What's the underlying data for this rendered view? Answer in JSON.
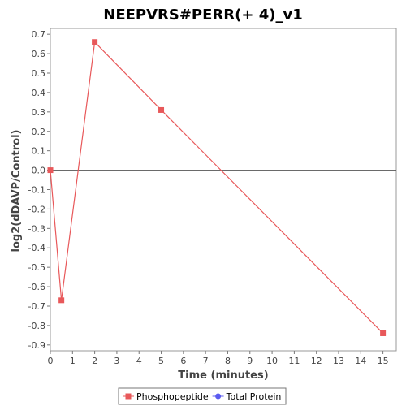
{
  "chart_data": {
    "type": "line",
    "title": "NEEPVRS#PERR(+ 4)_v1",
    "xlabel": "Time (minutes)",
    "ylabel": "log2(dDAVP/Control)",
    "xlim": [
      0,
      15.6
    ],
    "ylim": [
      -0.93,
      0.73
    ],
    "x_ticks": [
      0,
      1,
      2,
      3,
      4,
      5,
      6,
      7,
      8,
      9,
      10,
      11,
      12,
      13,
      14,
      15
    ],
    "y_ticks": [
      0.7,
      0.6,
      0.5,
      0.4,
      0.3,
      0.2,
      0.1,
      0.0,
      -0.1,
      -0.2,
      -0.3,
      -0.4,
      -0.5,
      -0.6,
      -0.7,
      -0.8,
      -0.9
    ],
    "y_tick_labels": [
      "0.7",
      "0.6",
      "0.5",
      "0.4",
      "0.3",
      "0.2",
      "0.1",
      "0.0",
      "-0.1",
      "-0.2",
      "-0.3",
      "-0.4",
      "-0.5",
      "-0.6",
      "-0.7",
      "-0.8",
      "-0.9"
    ],
    "zero_line": true,
    "grid": false,
    "legend_position": "bottom",
    "series": [
      {
        "name": "Phosphopeptide",
        "color": "#e8585a",
        "marker": "square",
        "points": [
          {
            "x": 0,
            "y": 0.0
          },
          {
            "x": 0.5,
            "y": -0.67
          },
          {
            "x": 2,
            "y": 0.66
          },
          {
            "x": 5,
            "y": 0.31
          },
          {
            "x": 15,
            "y": -0.84
          }
        ]
      },
      {
        "name": "Total Protein",
        "color": "#5b5bf0",
        "marker": "circle",
        "points": []
      }
    ]
  }
}
